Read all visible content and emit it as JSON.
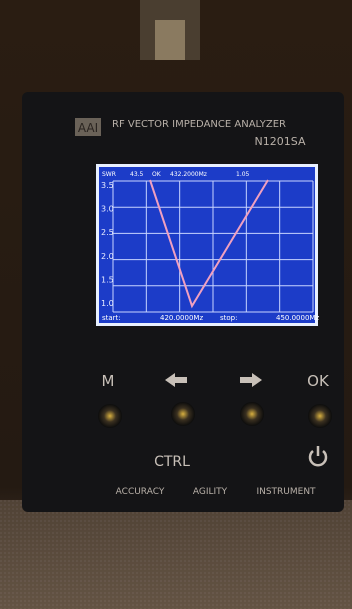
{
  "device": {
    "logo": "AAI",
    "title": "RF VECTOR IMPEDANCE ANALYZER",
    "model": "N1201SA"
  },
  "screen": {
    "header": [
      "SWR",
      "43.5",
      "OK",
      "432.2000Mz",
      "1.05"
    ],
    "yticks": [
      "3.5",
      "3.0",
      "2.5",
      "2.0",
      "1.5",
      "1.0"
    ],
    "footer": [
      "start:",
      "420.0000Mz",
      "stop:",
      "450.0000Mz"
    ]
  },
  "buttons": {
    "top": [
      "M",
      "OK"
    ],
    "ctrl": "CTRL",
    "bottom": [
      "ACCURACY",
      "AGILITY",
      "INSTRUMENT"
    ]
  }
}
